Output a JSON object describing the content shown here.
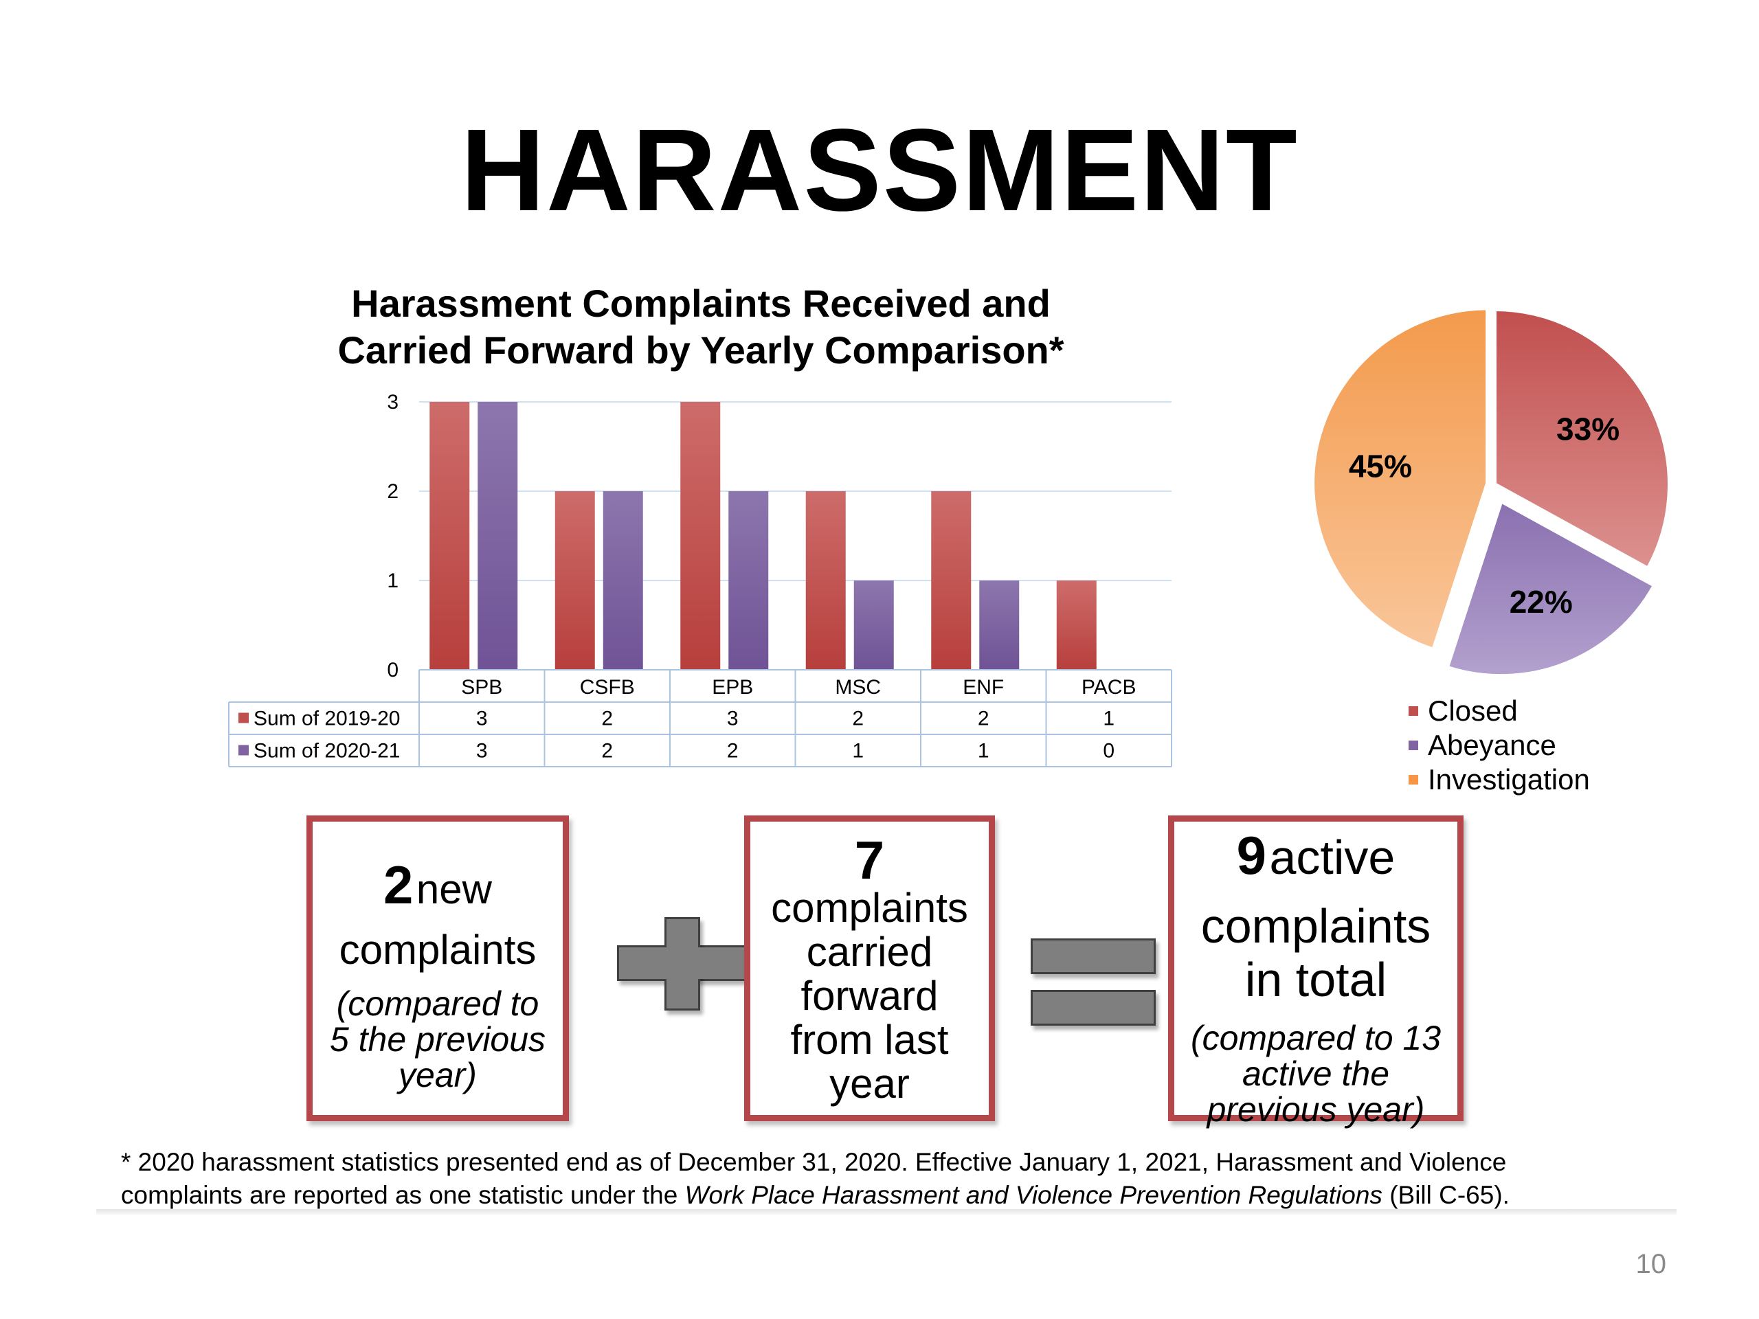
{
  "slide": {
    "title": "HARASSMENT",
    "page_number": "10"
  },
  "boxes": {
    "new": {
      "number": "2",
      "label1": "new",
      "label2": "complaints",
      "note": [
        "(compared to",
        "5 the previous",
        "year)"
      ]
    },
    "carried": {
      "number": "7",
      "lines": [
        "complaints",
        "carried",
        "forward",
        "from last",
        "year"
      ]
    },
    "active": {
      "number": "9",
      "label1": "active",
      "label2": "complaints",
      "label3": "in total",
      "note": [
        "(compared to 13",
        "active the",
        "previous year)"
      ]
    }
  },
  "footnote": {
    "line1": "* 2020 harassment statistics presented end as of December 31, 2020. Effective January 1, 2021, Harassment and Violence",
    "line2_a": "complaints are reported as one statistic under the ",
    "line2_italic": "Work Place Harassment and Violence Prevention Regulations",
    "line2_b": " (Bill C-65)."
  },
  "chart_data": [
    {
      "type": "bar",
      "title": "Harassment Complaints Received and Carried Forward by Yearly Comparison*",
      "title_lines": [
        "Harassment Complaints Received and",
        "Carried Forward by Yearly Comparison*"
      ],
      "categories": [
        "SPB",
        "CSFB",
        "EPB",
        "MSC",
        "ENF",
        "PACB"
      ],
      "series": [
        {
          "name": "Sum of 2019-20",
          "values": [
            3,
            2,
            3,
            2,
            2,
            1
          ],
          "color": "#c0504d"
        },
        {
          "name": "Sum of 2020-21",
          "values": [
            3,
            2,
            2,
            1,
            1,
            0
          ],
          "color": "#8064a2"
        }
      ],
      "yticks": [
        0,
        1,
        2,
        3
      ],
      "ylim": [
        0,
        3
      ],
      "grid": true,
      "data_table": true
    },
    {
      "type": "pie",
      "slices": [
        {
          "label": "Closed",
          "value": 33,
          "display": "33%",
          "color": "#c0504d"
        },
        {
          "label": "Abeyance",
          "value": 22,
          "display": "22%",
          "color": "#8064a2"
        },
        {
          "label": "Investigation",
          "value": 45,
          "display": "45%",
          "color": "#f79646"
        }
      ],
      "legend_position": "bottom"
    }
  ]
}
